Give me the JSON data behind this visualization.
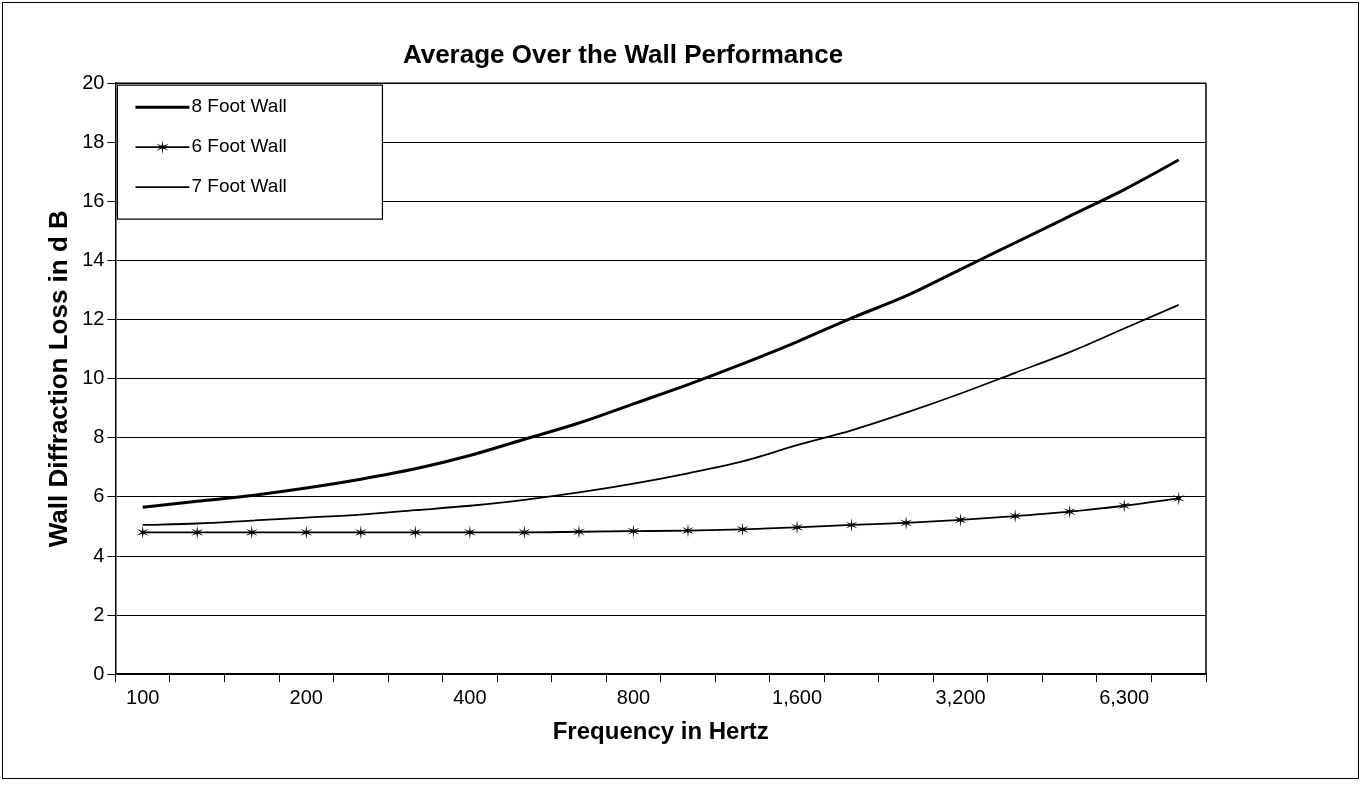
{
  "chart_data": {
    "type": "line",
    "title": "Average Over the Wall Performance",
    "xlabel": "Frequency in Hertz",
    "ylabel": "Wall Diffraction Loss in d B",
    "categories": [
      "100",
      null,
      null,
      "200",
      null,
      null,
      "400",
      null,
      null,
      "800",
      null,
      null,
      "1,600",
      null,
      null,
      "3,200",
      null,
      null,
      "6,300",
      null
    ],
    "series": [
      {
        "name": "8 Foot Wall",
        "color": "#000000",
        "marker": "none",
        "values": [
          5.65,
          5.85,
          6.05,
          6.3,
          6.6,
          6.95,
          7.4,
          7.95,
          8.5,
          9.15,
          9.8,
          10.5,
          11.25,
          12.05,
          12.8,
          13.7,
          14.6,
          15.5,
          16.4,
          17.4
        ]
      },
      {
        "name": "6 Foot Wall",
        "color": "#000000",
        "marker": "cross",
        "values": [
          4.8,
          4.8,
          4.8,
          4.8,
          4.8,
          4.8,
          4.8,
          4.8,
          4.82,
          4.84,
          4.86,
          4.9,
          4.97,
          5.05,
          5.12,
          5.22,
          5.35,
          5.5,
          5.7,
          5.95
        ]
      },
      {
        "name": "7 Foot Wall",
        "color": "#000000",
        "marker": "none",
        "values": [
          5.05,
          5.1,
          5.2,
          5.3,
          5.4,
          5.55,
          5.7,
          5.9,
          6.15,
          6.45,
          6.8,
          7.2,
          7.75,
          8.25,
          8.85,
          9.5,
          10.2,
          10.9,
          11.7,
          12.5
        ]
      }
    ],
    "ylim": [
      0,
      20
    ],
    "yticks": [
      0,
      2,
      4,
      6,
      8,
      10,
      12,
      14,
      16,
      18,
      20
    ],
    "grid": "y",
    "legend": "top left",
    "line_style": "solid"
  }
}
